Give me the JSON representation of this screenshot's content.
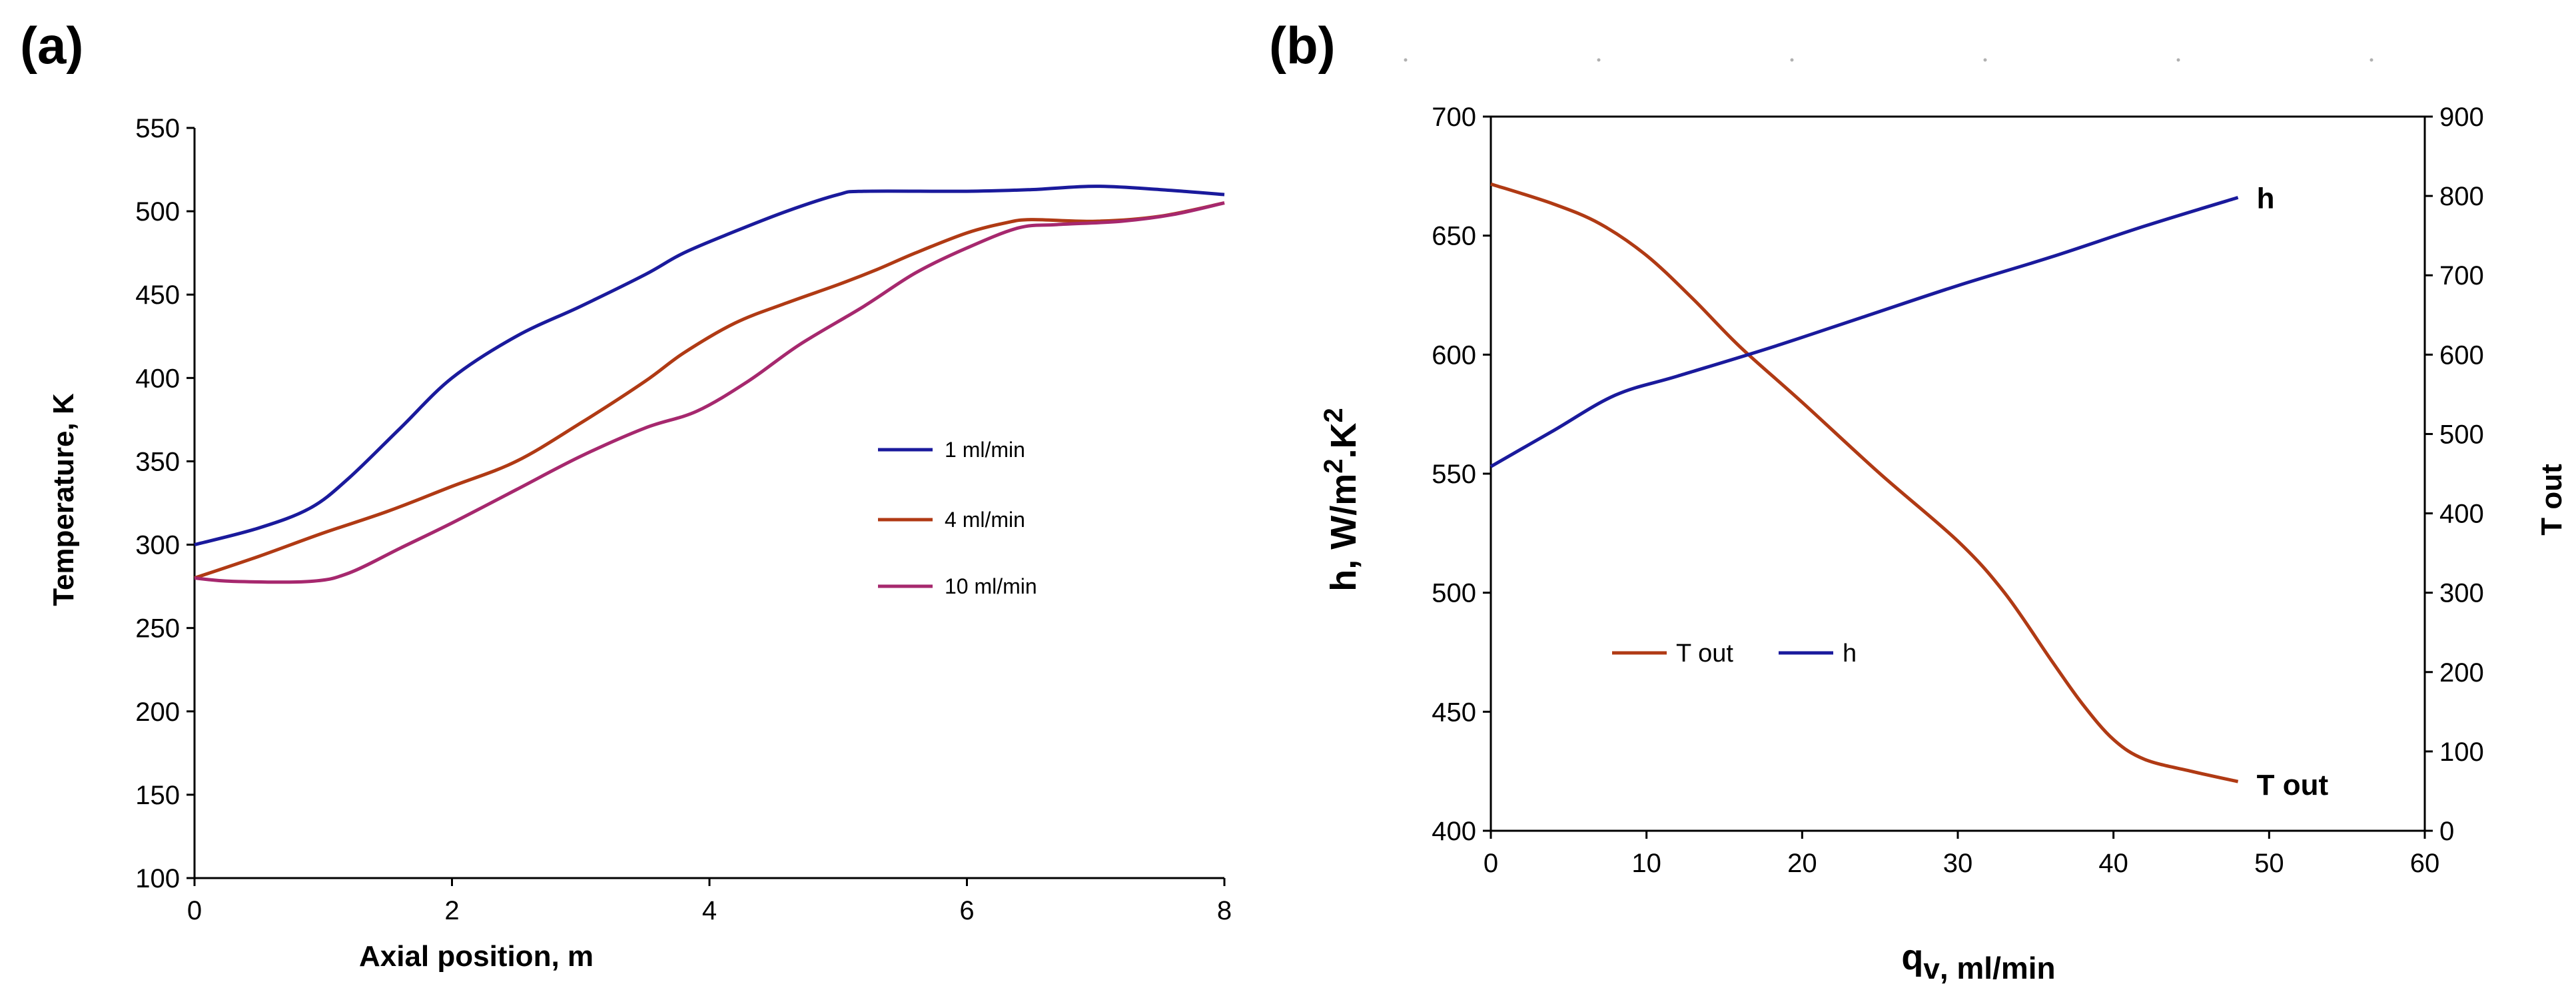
{
  "chart_data": [
    {
      "panel_label": "(a)",
      "type": "line",
      "title": "",
      "xlabel": "Axial position, m",
      "ylabel": "Temperature, K",
      "xlim": [
        0,
        8
      ],
      "ylim": [
        100,
        550
      ],
      "xticks": [
        "0",
        "2",
        "4",
        "6",
        "8"
      ],
      "yticks": [
        "100",
        "150",
        "200",
        "250",
        "300",
        "350",
        "400",
        "450",
        "500",
        "550"
      ],
      "grid": false,
      "legend_position": "center-right",
      "series": [
        {
          "name": "1 ml/min",
          "color": "#1A1A9C",
          "x": [
            0,
            0.5,
            0.9,
            1.2,
            1.6,
            2.0,
            2.5,
            3.0,
            3.5,
            3.8,
            4.2,
            4.6,
            5.0,
            5.2,
            6.0,
            6.5,
            7.0,
            7.5,
            8.0
          ],
          "y": [
            300,
            310,
            322,
            340,
            370,
            400,
            425,
            443,
            462,
            475,
            488,
            500,
            510,
            512,
            512,
            513,
            515,
            513,
            510
          ]
        },
        {
          "name": "4 ml/min",
          "color": "#B03A14",
          "x": [
            0,
            0.5,
            1.0,
            1.5,
            2.0,
            2.5,
            3.0,
            3.5,
            3.8,
            4.2,
            4.6,
            5.0,
            5.3,
            5.6,
            6.0,
            6.3,
            6.5,
            7.0,
            7.5,
            8.0
          ],
          "y": [
            280,
            293,
            307,
            320,
            335,
            350,
            373,
            398,
            415,
            433,
            445,
            456,
            465,
            475,
            487,
            493,
            495,
            494,
            497,
            505
          ]
        },
        {
          "name": "10 ml/min",
          "color": "#A6286E",
          "x": [
            0,
            0.3,
            0.9,
            1.2,
            1.6,
            2.0,
            2.5,
            3.0,
            3.5,
            3.9,
            4.3,
            4.7,
            5.2,
            5.6,
            6.0,
            6.4,
            6.7,
            7.2,
            7.6,
            8.0
          ],
          "y": [
            280,
            278,
            278,
            283,
            298,
            313,
            333,
            353,
            370,
            380,
            398,
            420,
            443,
            463,
            478,
            490,
            492,
            494,
            498,
            505
          ]
        }
      ]
    },
    {
      "panel_label": "(b)",
      "type": "line",
      "title": "",
      "xlabel_main": "q",
      "xlabel_sub": "v",
      "xlabel_rest": ", ml/min",
      "ylabel_left_prefix": "h, W/m",
      "ylabel_left_sup1": "2",
      "ylabel_left_dot": ".",
      "ylabel_left_k": "K",
      "ylabel_left_sup2": "2",
      "ylabel_right": "T out",
      "xlim": [
        0,
        60
      ],
      "ylim_left": [
        400,
        700
      ],
      "ylim_right": [
        0,
        900
      ],
      "xticks": [
        "0",
        "10",
        "20",
        "30",
        "40",
        "50",
        "60"
      ],
      "yticks_left": [
        "400",
        "450",
        "500",
        "550",
        "600",
        "650",
        "700"
      ],
      "yticks_right": [
        "0",
        "100",
        "200",
        "300",
        "400",
        "500",
        "600",
        "700",
        "800",
        "900"
      ],
      "grid": false,
      "legend_position": "center-left",
      "series": [
        {
          "name": "T out",
          "axis": "right",
          "color": "#B03A14",
          "end_label": "T out",
          "x": [
            0,
            4,
            7,
            10,
            13,
            16,
            20,
            25,
            30,
            33,
            36,
            38,
            40,
            42,
            45,
            48
          ],
          "y": [
            815,
            790,
            765,
            725,
            670,
            610,
            540,
            450,
            365,
            300,
            215,
            160,
            115,
            90,
            75,
            62
          ]
        },
        {
          "name": "h",
          "axis": "left",
          "color": "#1A1A9C",
          "end_label": "h",
          "x": [
            0,
            4,
            8,
            12,
            18,
            24,
            30,
            36,
            42,
            48
          ],
          "y": [
            553,
            568,
            583,
            591,
            603,
            616,
            629,
            641,
            654,
            666
          ]
        }
      ]
    }
  ]
}
